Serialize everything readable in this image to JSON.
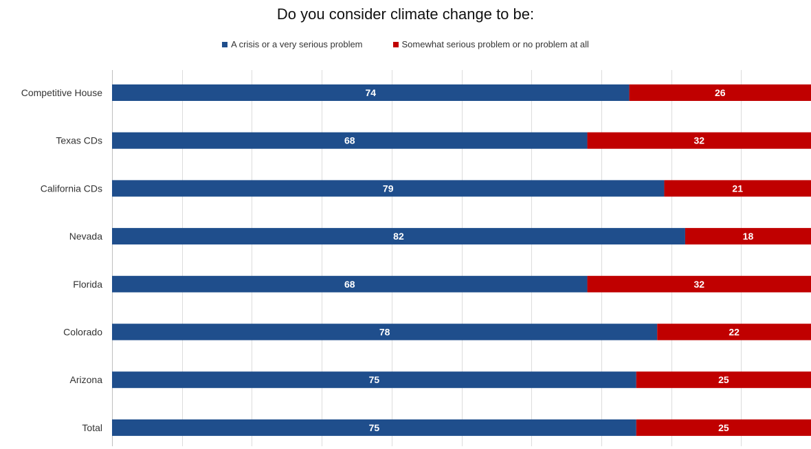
{
  "chart_data": {
    "type": "bar",
    "orientation": "horizontal",
    "stacked": true,
    "title": "Do you consider climate change to be:",
    "categories": [
      "Competitive House",
      "Texas CDs",
      "California CDs",
      "Nevada",
      "Florida",
      "Colorado",
      "Arizona",
      "Total"
    ],
    "series": [
      {
        "name": "A crisis or a very serious problem",
        "color": "#1f4e8c",
        "values": [
          74,
          68,
          79,
          82,
          68,
          78,
          75,
          75
        ]
      },
      {
        "name": "Somewhat serious problem or no problem at all",
        "color": "#c00000",
        "values": [
          26,
          32,
          21,
          18,
          32,
          22,
          25,
          25
        ]
      }
    ],
    "xlim": [
      0,
      100
    ],
    "grid": true,
    "legend_position": "top"
  }
}
